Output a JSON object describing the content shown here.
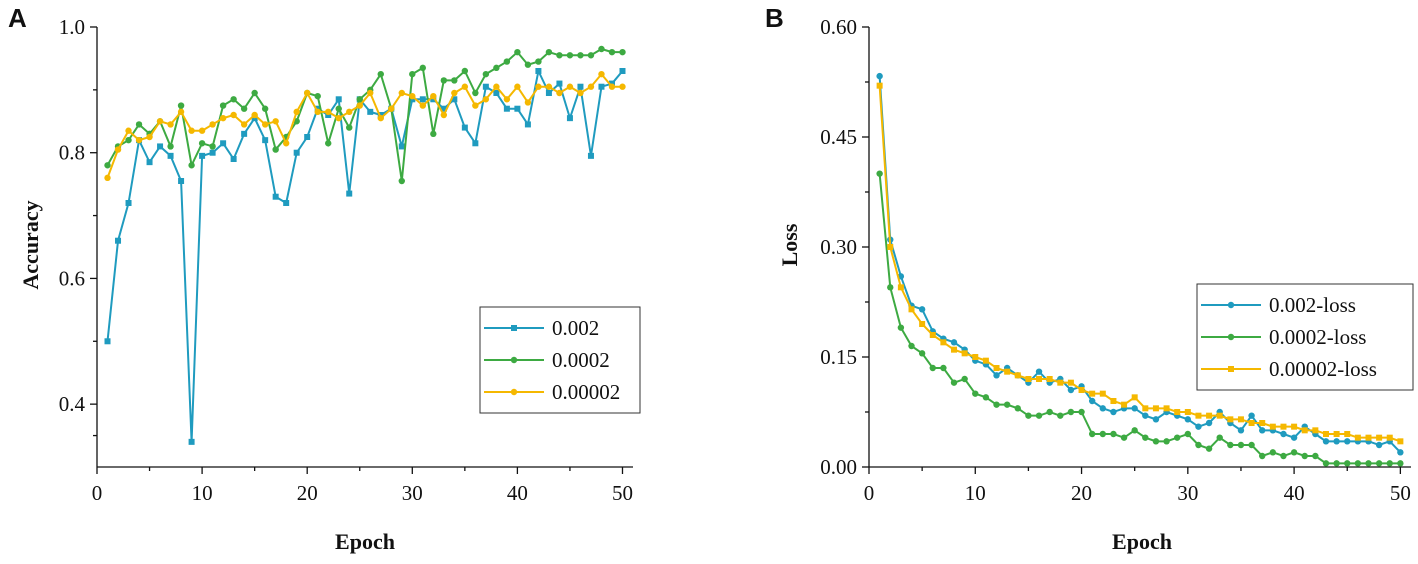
{
  "chart_data": [
    {
      "panel": "A",
      "type": "line",
      "title": "",
      "xlabel": "Epoch",
      "ylabel": "Accuracy",
      "xlim": [
        0,
        51
      ],
      "ylim": [
        0.3,
        1.0
      ],
      "xticks": [
        0,
        10,
        20,
        30,
        40,
        50
      ],
      "xtick_labels": [
        "0",
        "10",
        "20",
        "30",
        "40",
        "50"
      ],
      "yticks": [
        0.4,
        0.6,
        0.8,
        1.0
      ],
      "ytick_labels": [
        "0.4",
        "0.6",
        "0.8",
        "1.0"
      ],
      "legend_position": "center-right",
      "x": [
        1,
        2,
        3,
        4,
        5,
        6,
        7,
        8,
        9,
        10,
        11,
        12,
        13,
        14,
        15,
        16,
        17,
        18,
        19,
        20,
        21,
        22,
        23,
        24,
        25,
        26,
        27,
        28,
        29,
        30,
        31,
        32,
        33,
        34,
        35,
        36,
        37,
        38,
        39,
        40,
        41,
        42,
        43,
        44,
        45,
        46,
        47,
        48,
        49,
        50
      ],
      "series": [
        {
          "name": "0.002",
          "color": "#1f9bbf",
          "marker": "square",
          "values": [
            0.5,
            0.66,
            0.72,
            0.82,
            0.785,
            0.81,
            0.795,
            0.755,
            0.34,
            0.795,
            0.8,
            0.815,
            0.79,
            0.83,
            0.855,
            0.82,
            0.73,
            0.72,
            0.8,
            0.825,
            0.87,
            0.86,
            0.885,
            0.735,
            0.885,
            0.865,
            0.86,
            0.87,
            0.81,
            0.885,
            0.885,
            0.885,
            0.87,
            0.885,
            0.84,
            0.815,
            0.905,
            0.895,
            0.87,
            0.87,
            0.845,
            0.93,
            0.895,
            0.91,
            0.855,
            0.905,
            0.795,
            0.905,
            0.91,
            0.93
          ]
        },
        {
          "name": "0.0002",
          "color": "#3daa42",
          "marker": "circle",
          "values": [
            0.78,
            0.81,
            0.82,
            0.845,
            0.83,
            0.85,
            0.81,
            0.875,
            0.78,
            0.815,
            0.81,
            0.875,
            0.885,
            0.87,
            0.895,
            0.87,
            0.805,
            0.825,
            0.85,
            0.895,
            0.89,
            0.815,
            0.87,
            0.84,
            0.885,
            0.9,
            0.925,
            0.87,
            0.755,
            0.925,
            0.935,
            0.83,
            0.915,
            0.915,
            0.93,
            0.895,
            0.925,
            0.935,
            0.945,
            0.96,
            0.94,
            0.945,
            0.96,
            0.955,
            0.955,
            0.955,
            0.955,
            0.965,
            0.96,
            0.96
          ]
        },
        {
          "name": "0.00002",
          "color": "#f5b800",
          "marker": "circle",
          "values": [
            0.76,
            0.805,
            0.835,
            0.82,
            0.825,
            0.85,
            0.845,
            0.865,
            0.835,
            0.835,
            0.845,
            0.855,
            0.86,
            0.845,
            0.86,
            0.845,
            0.85,
            0.815,
            0.865,
            0.895,
            0.865,
            0.865,
            0.855,
            0.865,
            0.875,
            0.895,
            0.855,
            0.87,
            0.895,
            0.89,
            0.875,
            0.89,
            0.86,
            0.895,
            0.905,
            0.875,
            0.885,
            0.905,
            0.885,
            0.905,
            0.88,
            0.905,
            0.905,
            0.895,
            0.905,
            0.895,
            0.905,
            0.925,
            0.905,
            0.905
          ]
        }
      ]
    },
    {
      "panel": "B",
      "type": "line",
      "title": "",
      "xlabel": "Epoch",
      "ylabel": "Loss",
      "xlim": [
        0,
        51
      ],
      "ylim": [
        0.0,
        0.6
      ],
      "xticks": [
        0,
        10,
        20,
        30,
        40,
        50
      ],
      "xtick_labels": [
        "0",
        "10",
        "20",
        "30",
        "40",
        "50"
      ],
      "yticks": [
        0.0,
        0.15,
        0.3,
        0.45,
        0.6
      ],
      "ytick_labels": [
        "0.00",
        "0.15",
        "0.30",
        "0.45",
        "0.60"
      ],
      "legend_position": "center-right",
      "x": [
        1,
        2,
        3,
        4,
        5,
        6,
        7,
        8,
        9,
        10,
        11,
        12,
        13,
        14,
        15,
        16,
        17,
        18,
        19,
        20,
        21,
        22,
        23,
        24,
        25,
        26,
        27,
        28,
        29,
        30,
        31,
        32,
        33,
        34,
        35,
        36,
        37,
        38,
        39,
        40,
        41,
        42,
        43,
        44,
        45,
        46,
        47,
        48,
        49,
        50
      ],
      "series": [
        {
          "name": "0.002-loss",
          "color": "#1f9bbf",
          "marker": "circle",
          "values": [
            0.533,
            0.31,
            0.26,
            0.22,
            0.215,
            0.185,
            0.175,
            0.17,
            0.16,
            0.145,
            0.14,
            0.125,
            0.135,
            0.125,
            0.115,
            0.13,
            0.115,
            0.12,
            0.105,
            0.11,
            0.09,
            0.08,
            0.075,
            0.08,
            0.08,
            0.07,
            0.065,
            0.075,
            0.07,
            0.065,
            0.055,
            0.06,
            0.075,
            0.06,
            0.05,
            0.07,
            0.05,
            0.05,
            0.045,
            0.04,
            0.055,
            0.045,
            0.035,
            0.035,
            0.035,
            0.035,
            0.035,
            0.03,
            0.035,
            0.02
          ]
        },
        {
          "name": "0.0002-loss",
          "color": "#3daa42",
          "marker": "circle",
          "values": [
            0.4,
            0.245,
            0.19,
            0.165,
            0.155,
            0.135,
            0.135,
            0.115,
            0.12,
            0.1,
            0.095,
            0.085,
            0.085,
            0.08,
            0.07,
            0.07,
            0.075,
            0.07,
            0.075,
            0.075,
            0.045,
            0.045,
            0.045,
            0.04,
            0.05,
            0.04,
            0.035,
            0.035,
            0.04,
            0.045,
            0.03,
            0.025,
            0.04,
            0.03,
            0.03,
            0.03,
            0.015,
            0.02,
            0.015,
            0.02,
            0.015,
            0.015,
            0.005,
            0.005,
            0.005,
            0.005,
            0.005,
            0.005,
            0.005,
            0.005
          ]
        },
        {
          "name": "0.00002-loss",
          "color": "#f5b800",
          "marker": "square",
          "values": [
            0.52,
            0.3,
            0.245,
            0.215,
            0.195,
            0.18,
            0.17,
            0.16,
            0.155,
            0.15,
            0.145,
            0.135,
            0.13,
            0.125,
            0.12,
            0.12,
            0.12,
            0.115,
            0.115,
            0.105,
            0.1,
            0.1,
            0.09,
            0.085,
            0.095,
            0.08,
            0.08,
            0.08,
            0.075,
            0.075,
            0.07,
            0.07,
            0.07,
            0.065,
            0.065,
            0.06,
            0.06,
            0.055,
            0.055,
            0.055,
            0.05,
            0.05,
            0.045,
            0.045,
            0.045,
            0.04,
            0.04,
            0.04,
            0.04,
            0.035
          ]
        }
      ]
    }
  ]
}
